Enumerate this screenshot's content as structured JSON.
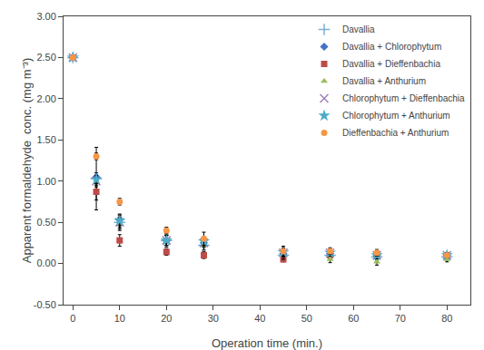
{
  "chart_data": {
    "type": "scatter",
    "xlabel": "Operation time (min.)",
    "ylabel": "Apparent formaldehyde  conc. (mg m⁻³)",
    "xlim": [
      -2,
      85
    ],
    "ylim": [
      -0.5,
      3.0
    ],
    "xticks": [
      0,
      10,
      20,
      30,
      40,
      50,
      60,
      70,
      80
    ],
    "yticks": [
      {
        "value": -0.5,
        "label": "-0.50"
      },
      {
        "value": 0.0,
        "label": "0.00"
      },
      {
        "value": 0.5,
        "label": "0.50"
      },
      {
        "value": 1.0,
        "label": "1.00"
      },
      {
        "value": 1.5,
        "label": "1.50"
      },
      {
        "value": 2.0,
        "label": "2.00"
      },
      {
        "value": 2.5,
        "label": "2.50"
      },
      {
        "value": 3.0,
        "label": "3.00"
      }
    ],
    "grid": false,
    "legend": "upper right",
    "x": [
      0,
      5,
      10,
      20,
      28,
      45,
      55,
      65,
      80
    ],
    "series": [
      {
        "name": "Davallia",
        "marker": "plus",
        "color": "#7BAFD4",
        "values": [
          2.5,
          1.03,
          0.5,
          0.28,
          0.22,
          0.1,
          0.1,
          0.08,
          0.08
        ],
        "errors": [
          0.0,
          0.38,
          0.1,
          0.08,
          0.07,
          0.06,
          0.04,
          0.04,
          0.03
        ]
      },
      {
        "name": "Davallia + Chlorophytum",
        "marker": "diamond",
        "color": "#4472C4",
        "values": [
          2.5,
          1.05,
          0.53,
          0.28,
          0.25,
          0.12,
          0.12,
          0.1,
          0.1
        ],
        "errors": [
          0.0,
          0.05,
          0.06,
          0.06,
          0.05,
          0.05,
          0.04,
          0.04,
          0.03
        ]
      },
      {
        "name": "Davallia + Dieffenbachia",
        "marker": "square",
        "color": "#BE4B48",
        "values": [
          2.5,
          0.87,
          0.28,
          0.14,
          0.1,
          0.05,
          0.1,
          0.1,
          0.08
        ],
        "errors": [
          0.0,
          0.1,
          0.07,
          0.04,
          0.04,
          0.03,
          0.03,
          0.03,
          0.02
        ]
      },
      {
        "name": "Davallia + Anthurium",
        "marker": "triangle",
        "color": "#9BBB59",
        "values": [
          2.5,
          0.98,
          0.48,
          0.28,
          0.22,
          0.1,
          0.05,
          0.02,
          0.05
        ],
        "errors": [
          0.0,
          0.05,
          0.06,
          0.06,
          0.05,
          0.05,
          0.04,
          0.04,
          0.03
        ]
      },
      {
        "name": "Chlorophytum + Dieffenbachia",
        "marker": "x",
        "color": "#9E80B9",
        "values": [
          2.5,
          1.0,
          0.5,
          0.28,
          0.25,
          0.13,
          0.13,
          0.1,
          0.1
        ],
        "errors": [
          0.0,
          0.05,
          0.06,
          0.06,
          0.05,
          0.05,
          0.04,
          0.04,
          0.03
        ]
      },
      {
        "name": "Chlorophytum + Anthurium",
        "marker": "star",
        "color": "#4BACC6",
        "values": [
          2.5,
          1.02,
          0.52,
          0.28,
          0.27,
          0.14,
          0.13,
          0.1,
          0.1
        ],
        "errors": [
          0.0,
          0.05,
          0.06,
          0.06,
          0.05,
          0.05,
          0.04,
          0.04,
          0.03
        ]
      },
      {
        "name": "Dieffenbachia + Anthurium",
        "marker": "circle",
        "color": "#F79646",
        "values": [
          2.5,
          1.3,
          0.75,
          0.4,
          0.3,
          0.15,
          0.15,
          0.13,
          0.1
        ],
        "errors": [
          0.0,
          0.04,
          0.04,
          0.04,
          0.08,
          0.06,
          0.04,
          0.04,
          0.03
        ]
      }
    ]
  }
}
